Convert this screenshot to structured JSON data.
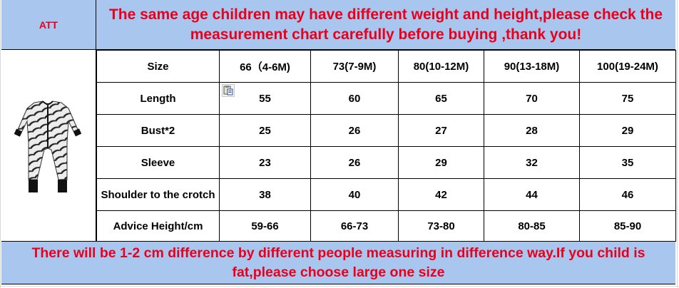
{
  "header": {
    "corner_label": "ATT",
    "notice": "The same age children may have different weight and height,please check the measurement chart carefully before buying ,thank you!"
  },
  "table": {
    "columns": [
      "Size",
      "66（4-6M)",
      "73(7-9M)",
      "80(10-12M)",
      "90(13-18M)",
      "100(19-24M)"
    ],
    "rows": [
      {
        "label": "Length",
        "values": [
          "55",
          "60",
          "65",
          "70",
          "75"
        ]
      },
      {
        "label": "Bust*2",
        "values": [
          "25",
          "26",
          "27",
          "28",
          "29"
        ]
      },
      {
        "label": "Sleeve",
        "values": [
          "23",
          "26",
          "29",
          "32",
          "35"
        ]
      },
      {
        "label": "Shoulder to the crotch",
        "values": [
          "38",
          "40",
          "42",
          "44",
          "46"
        ]
      },
      {
        "label": "Advice Height/cm",
        "values": [
          "59-66",
          "66-73",
          "73-80",
          "80-85",
          "85-90"
        ]
      }
    ]
  },
  "footer": {
    "note": "There will be 1-2 cm difference by different people measuring in difference way.If you child is fat,please choose large one size"
  },
  "colors": {
    "banner_bg": "#a9c6ef",
    "banner_text": "#e8001c"
  },
  "icons": {
    "paste": "paste-icon",
    "product": "zebra-romper-image"
  }
}
